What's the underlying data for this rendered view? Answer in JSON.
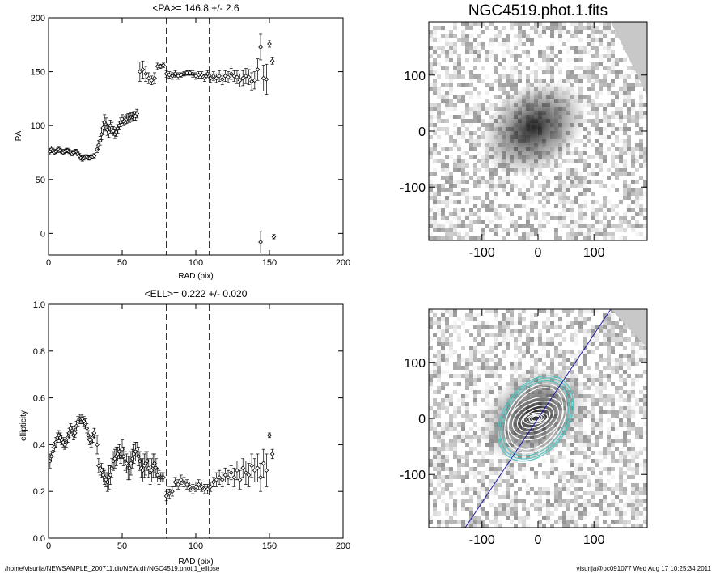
{
  "chart_data": [
    {
      "type": "scatter",
      "title": "<PA>= 146.8 +/-   2.6",
      "xlabel": "RAD (pix)",
      "ylabel": "PA",
      "xlim": [
        0,
        200
      ],
      "ylim": [
        -20,
        200
      ],
      "xticks": [
        0,
        50,
        100,
        150,
        200
      ],
      "yticks": [
        0,
        50,
        100,
        150,
        200
      ],
      "vlines": [
        80,
        109
      ],
      "mean_line": {
        "x": [
          80,
          109
        ],
        "y": 146.8
      },
      "series": [
        {
          "x": [
            1,
            2,
            3,
            4,
            5,
            6,
            7,
            8,
            9,
            10,
            11,
            12,
            13,
            14,
            15,
            16,
            17,
            18,
            19,
            20,
            21,
            22,
            23,
            24,
            25,
            26,
            27,
            28,
            29,
            30,
            31
          ],
          "y": [
            76,
            78,
            77,
            75,
            76,
            77,
            78,
            77,
            76,
            75,
            76,
            77,
            77,
            76,
            75,
            74,
            75,
            76,
            76,
            74,
            72,
            70,
            69,
            70,
            71,
            71,
            70,
            70,
            71,
            71,
            72
          ],
          "err": [
            3,
            3,
            2,
            2,
            2,
            2,
            2,
            2,
            2,
            2,
            2,
            2,
            2,
            2,
            2,
            2,
            2,
            2,
            2,
            2,
            2,
            2,
            2,
            2,
            2,
            2,
            2,
            2,
            2,
            2,
            2
          ]
        },
        {
          "x": [
            33,
            34,
            35,
            36,
            37,
            38,
            39,
            40,
            41,
            42,
            43,
            44,
            45,
            46,
            47,
            48,
            49,
            50,
            51,
            52,
            53,
            54,
            55,
            56,
            57,
            58,
            59,
            60
          ],
          "y": [
            78,
            82,
            86,
            92,
            98,
            103,
            101,
            96,
            94,
            100,
            98,
            95,
            92,
            94,
            97,
            100,
            103,
            106,
            104,
            105,
            106,
            107,
            107,
            108,
            108,
            109,
            109,
            111
          ],
          "err": [
            3,
            4,
            4,
            5,
            6,
            7,
            6,
            5,
            5,
            5,
            5,
            4,
            4,
            4,
            4,
            4,
            4,
            4,
            4,
            4,
            4,
            4,
            4,
            4,
            4,
            4,
            4,
            4
          ]
        },
        {
          "x": [
            62,
            64,
            66,
            68,
            70,
            72,
            74,
            76,
            78
          ],
          "y": [
            150,
            152,
            148,
            144,
            142,
            144,
            155,
            155,
            156
          ],
          "err": [
            9,
            8,
            7,
            5,
            4,
            5,
            3,
            2,
            2
          ]
        },
        {
          "x": [
            80,
            82,
            84,
            86,
            88,
            90,
            92,
            94,
            96,
            98,
            100,
            102,
            104,
            106,
            108,
            110,
            112,
            114,
            116,
            118,
            120,
            122,
            124,
            126,
            128,
            130,
            132,
            134,
            136,
            138,
            140,
            142,
            144,
            146,
            148,
            150,
            152
          ],
          "y": [
            148,
            147,
            146,
            148,
            146,
            147,
            148,
            149,
            149,
            148,
            146,
            147,
            147,
            144,
            148,
            144,
            146,
            144,
            146,
            143,
            146,
            145,
            148,
            146,
            145,
            142,
            144,
            146,
            145,
            141,
            142,
            152,
            173,
            144,
            143,
            176,
            160
          ],
          "err": [
            3,
            3,
            3,
            3,
            3,
            2,
            2,
            2,
            2,
            3,
            3,
            3,
            3,
            3,
            3,
            4,
            4,
            4,
            5,
            5,
            5,
            5,
            5,
            5,
            6,
            6,
            7,
            7,
            7,
            8,
            8,
            10,
            12,
            12,
            14,
            3,
            3
          ]
        },
        {
          "x": [
            144,
            153
          ],
          "y": [
            -8,
            -3
          ],
          "err": [
            10,
            2
          ]
        }
      ]
    },
    {
      "type": "scatter",
      "title": "<ELL>= 0.222 +/-  0.020",
      "xlabel": "RAD (pix)",
      "ylabel": "ellipticity",
      "xlim": [
        0,
        200
      ],
      "ylim": [
        0.0,
        1.0
      ],
      "xticks": [
        0,
        50,
        100,
        150,
        200
      ],
      "yticks": [
        0.0,
        0.2,
        0.4,
        0.6,
        0.8,
        1.0
      ],
      "vlines": [
        80,
        109
      ],
      "mean_line": {
        "x": [
          80,
          109
        ],
        "y": 0.222
      },
      "series": [
        {
          "x": [
            1,
            2,
            3,
            4,
            5,
            6,
            7,
            8,
            9,
            10,
            11,
            12,
            13,
            14,
            15,
            16,
            17,
            18,
            19,
            20,
            21,
            22,
            23,
            24,
            25,
            26,
            27,
            28,
            29,
            30,
            31
          ],
          "y": [
            0.33,
            0.35,
            0.37,
            0.39,
            0.41,
            0.43,
            0.44,
            0.43,
            0.42,
            0.41,
            0.4,
            0.41,
            0.43,
            0.45,
            0.47,
            0.46,
            0.44,
            0.45,
            0.48,
            0.5,
            0.51,
            0.51,
            0.51,
            0.5,
            0.49,
            0.47,
            0.44,
            0.42,
            0.41,
            0.43,
            0.45
          ],
          "err": [
            0.03,
            0.02,
            0.02,
            0.02,
            0.02,
            0.02,
            0.02,
            0.02,
            0.02,
            0.02,
            0.02,
            0.02,
            0.02,
            0.02,
            0.02,
            0.02,
            0.02,
            0.02,
            0.02,
            0.02,
            0.02,
            0.02,
            0.02,
            0.02,
            0.02,
            0.02,
            0.02,
            0.02,
            0.02,
            0.02,
            0.02
          ]
        },
        {
          "x": [
            33,
            34,
            35,
            36,
            37,
            38,
            39,
            40,
            41,
            42,
            43,
            44,
            45,
            46,
            47,
            48,
            49,
            50,
            51,
            52,
            53,
            54,
            55,
            56,
            57,
            58,
            59,
            60,
            61,
            62,
            63,
            64,
            65,
            66,
            67,
            68,
            69,
            70,
            71,
            72,
            73,
            74,
            75,
            76,
            77,
            78
          ],
          "y": [
            0.4,
            0.31,
            0.3,
            0.29,
            0.27,
            0.26,
            0.25,
            0.24,
            0.26,
            0.27,
            0.3,
            0.33,
            0.34,
            0.35,
            0.36,
            0.37,
            0.35,
            0.38,
            0.35,
            0.33,
            0.32,
            0.3,
            0.3,
            0.32,
            0.34,
            0.36,
            0.37,
            0.38,
            0.35,
            0.33,
            0.3,
            0.29,
            0.31,
            0.32,
            0.33,
            0.3,
            0.28,
            0.29,
            0.31,
            0.32,
            0.3,
            0.27,
            0.26,
            0.26,
            0.26,
            0.26
          ],
          "err": [
            0.04,
            0.03,
            0.03,
            0.03,
            0.03,
            0.03,
            0.03,
            0.04,
            0.05,
            0.04,
            0.04,
            0.04,
            0.04,
            0.04,
            0.03,
            0.03,
            0.03,
            0.04,
            0.04,
            0.04,
            0.04,
            0.05,
            0.05,
            0.05,
            0.04,
            0.04,
            0.04,
            0.03,
            0.04,
            0.04,
            0.04,
            0.05,
            0.05,
            0.05,
            0.04,
            0.04,
            0.05,
            0.05,
            0.05,
            0.04,
            0.04,
            0.03,
            0.03,
            0.02,
            0.02,
            0.02
          ]
        },
        {
          "x": [
            80,
            82,
            84,
            86,
            88,
            90,
            92,
            94,
            96,
            98,
            100,
            102,
            104,
            106,
            108,
            110,
            112,
            114,
            116,
            118,
            120,
            122,
            124,
            126,
            128,
            130,
            132,
            134,
            136,
            138,
            140,
            142,
            144,
            146,
            148,
            150,
            152
          ],
          "y": [
            0.18,
            0.19,
            0.2,
            0.24,
            0.23,
            0.25,
            0.24,
            0.23,
            0.22,
            0.21,
            0.22,
            0.23,
            0.22,
            0.21,
            0.21,
            0.22,
            0.24,
            0.25,
            0.26,
            0.25,
            0.27,
            0.26,
            0.28,
            0.26,
            0.29,
            0.25,
            0.3,
            0.28,
            0.27,
            0.31,
            0.29,
            0.3,
            0.26,
            0.32,
            0.29,
            0.44,
            0.36
          ],
          "err": [
            0.02,
            0.02,
            0.02,
            0.02,
            0.02,
            0.02,
            0.02,
            0.02,
            0.02,
            0.02,
            0.02,
            0.02,
            0.02,
            0.02,
            0.02,
            0.02,
            0.02,
            0.03,
            0.03,
            0.03,
            0.03,
            0.03,
            0.03,
            0.04,
            0.04,
            0.04,
            0.04,
            0.05,
            0.05,
            0.05,
            0.05,
            0.06,
            0.06,
            0.06,
            0.07,
            0.01,
            0.02
          ]
        }
      ]
    },
    {
      "type": "heatmap",
      "title": "NGC4519.phot.1.fits",
      "xticks": [
        -100,
        0,
        100
      ],
      "yticks": [
        -100,
        0,
        100
      ],
      "xlim": [
        -195,
        195
      ],
      "ylim": [
        -195,
        195
      ]
    },
    {
      "type": "heatmap",
      "title": "",
      "xticks": [
        -100,
        0,
        100
      ],
      "yticks": [
        -100,
        0,
        100
      ],
      "xlim": [
        -195,
        195
      ],
      "ylim": [
        -195,
        195
      ],
      "overlay_line_color": "#1a1aa8",
      "ellipse_inner_color": "#ffffff",
      "ellipse_outer_color": "#55c4c0"
    }
  ],
  "footer": {
    "path": "/home/visurija/NEWSAMPLE_200711.dir/NEW.dir/NGC4519.phot.1_ellipse",
    "stamp": "visurija@pc091077  Wed Aug 17 10:25:34 2011"
  }
}
